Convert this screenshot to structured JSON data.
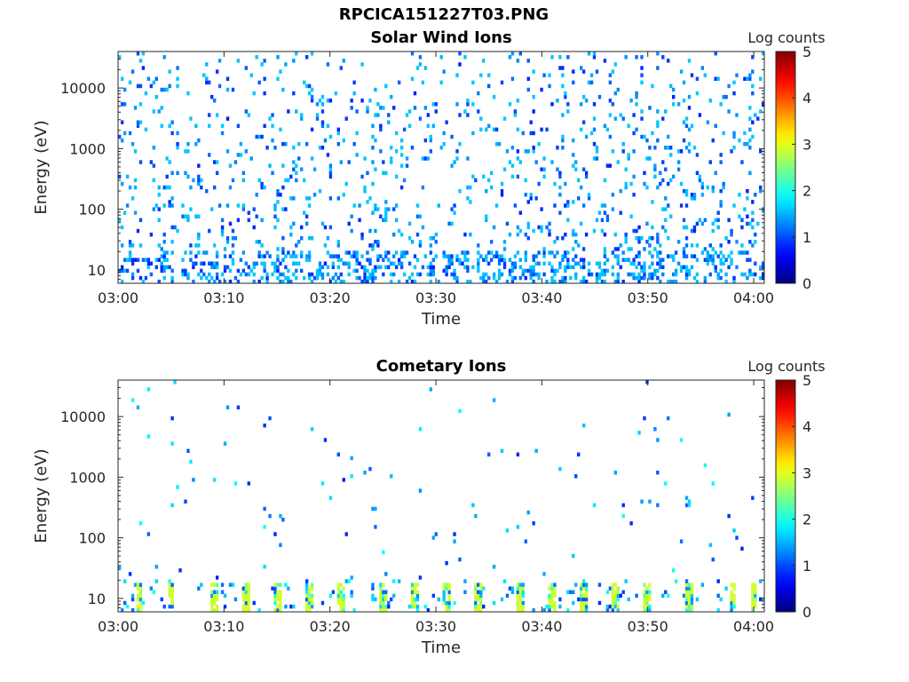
{
  "figure": {
    "title": "RPCICA151227T03.PNG"
  },
  "chart_data": [
    {
      "type": "heatmap",
      "title": "Solar Wind Ions",
      "xlabel": "Time",
      "ylabel": "Energy (eV)",
      "x_tick_labels": [
        "03:00",
        "03:10",
        "03:20",
        "03:30",
        "03:40",
        "03:50",
        "04:00"
      ],
      "xlim": [
        "03:00",
        "04:01"
      ],
      "y_scale": "log",
      "ylim": [
        6,
        40000
      ],
      "y_tick_labels": [
        "10",
        "100",
        "1000",
        "10000"
      ],
      "colorbar": {
        "label": "Log counts",
        "ticks": [
          "0",
          "1",
          "2",
          "3",
          "4",
          "5"
        ],
        "range": [
          0,
          5
        ],
        "colormap": "jet"
      },
      "pattern": {
        "seed": 7,
        "density": 0.11,
        "low_band_density": 0.3,
        "max_level": 1.6
      }
    },
    {
      "type": "heatmap",
      "title": "Cometary Ions",
      "xlabel": "Time",
      "ylabel": "Energy (eV)",
      "x_tick_labels": [
        "03:00",
        "03:10",
        "03:20",
        "03:30",
        "03:40",
        "03:50",
        "04:00"
      ],
      "xlim": [
        "03:00",
        "04:01"
      ],
      "y_scale": "log",
      "ylim": [
        6,
        40000
      ],
      "y_tick_labels": [
        "10",
        "100",
        "1000",
        "10000"
      ],
      "colorbar": {
        "label": "Log counts",
        "ticks": [
          "0",
          "1",
          "2",
          "3",
          "4",
          "5"
        ],
        "range": [
          0,
          5
        ],
        "colormap": "jet"
      },
      "burst_times": [
        "03:02",
        "03:05",
        "03:09",
        "03:12",
        "03:15",
        "03:18",
        "03:21",
        "03:25",
        "03:28",
        "03:31",
        "03:34",
        "03:38",
        "03:41",
        "03:44",
        "03:47",
        "03:50",
        "03:54",
        "03:58",
        "04:00"
      ],
      "pattern": {
        "seed": 13,
        "density": 0.012,
        "low_band_density": 0.06,
        "max_level": 2.9
      }
    }
  ]
}
